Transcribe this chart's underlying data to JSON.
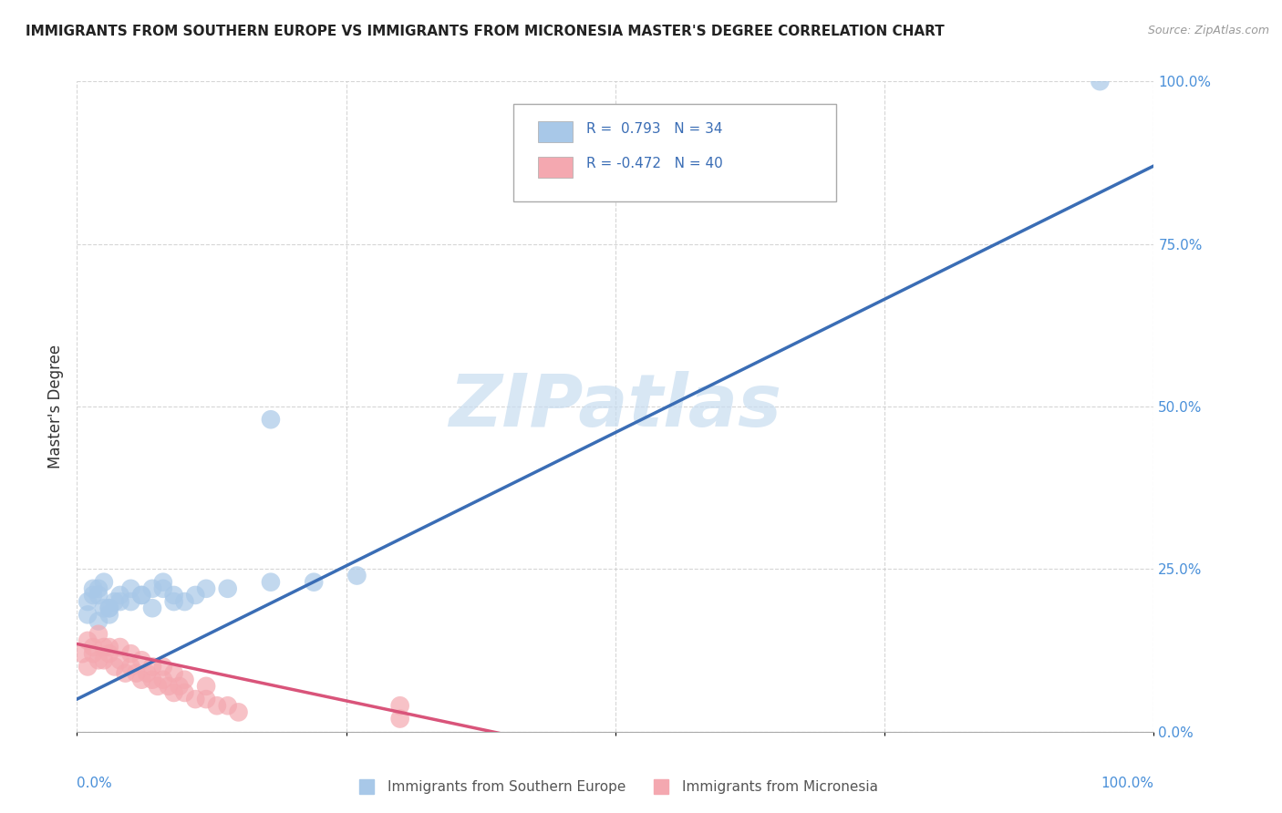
{
  "title": "IMMIGRANTS FROM SOUTHERN EUROPE VS IMMIGRANTS FROM MICRONESIA MASTER'S DEGREE CORRELATION CHART",
  "source": "Source: ZipAtlas.com",
  "ylabel": "Master's Degree",
  "y_ticks": [
    "0.0%",
    "25.0%",
    "50.0%",
    "75.0%",
    "100.0%"
  ],
  "y_tick_vals": [
    0.0,
    0.25,
    0.5,
    0.75,
    1.0
  ],
  "x_ticks": [
    0.0,
    0.25,
    0.5,
    0.75,
    1.0
  ],
  "legend1_r": "0.793",
  "legend1_n": "34",
  "legend2_r": "-0.472",
  "legend2_n": "40",
  "legend_bottom_label1": "Immigrants from Southern Europe",
  "legend_bottom_label2": "Immigrants from Micronesia",
  "blue_color": "#a8c8e8",
  "pink_color": "#f4a8b0",
  "blue_line_color": "#3a6db5",
  "pink_line_color": "#d9547a",
  "watermark": "ZIPatlas",
  "blue_scatter_x": [
    0.01,
    0.02,
    0.03,
    0.015,
    0.025,
    0.01,
    0.035,
    0.04,
    0.02,
    0.03,
    0.05,
    0.04,
    0.03,
    0.025,
    0.02,
    0.015,
    0.06,
    0.05,
    0.08,
    0.07,
    0.09,
    0.1,
    0.12,
    0.08,
    0.06,
    0.07,
    0.09,
    0.11,
    0.14,
    0.18,
    0.22,
    0.26,
    0.95,
    0.18
  ],
  "blue_scatter_y": [
    0.2,
    0.22,
    0.19,
    0.21,
    0.23,
    0.18,
    0.2,
    0.21,
    0.17,
    0.19,
    0.22,
    0.2,
    0.18,
    0.19,
    0.21,
    0.22,
    0.21,
    0.2,
    0.22,
    0.19,
    0.21,
    0.2,
    0.22,
    0.23,
    0.21,
    0.22,
    0.2,
    0.21,
    0.22,
    0.23,
    0.23,
    0.24,
    1.0,
    0.48
  ],
  "pink_scatter_x": [
    0.005,
    0.01,
    0.015,
    0.02,
    0.025,
    0.03,
    0.01,
    0.015,
    0.02,
    0.025,
    0.03,
    0.035,
    0.04,
    0.045,
    0.05,
    0.055,
    0.06,
    0.065,
    0.07,
    0.075,
    0.08,
    0.085,
    0.09,
    0.095,
    0.1,
    0.11,
    0.12,
    0.13,
    0.14,
    0.15,
    0.04,
    0.05,
    0.06,
    0.07,
    0.08,
    0.09,
    0.1,
    0.12,
    0.3,
    0.3
  ],
  "pink_scatter_y": [
    0.12,
    0.14,
    0.13,
    0.15,
    0.11,
    0.13,
    0.1,
    0.12,
    0.11,
    0.13,
    0.12,
    0.1,
    0.11,
    0.09,
    0.1,
    0.09,
    0.08,
    0.09,
    0.08,
    0.07,
    0.08,
    0.07,
    0.06,
    0.07,
    0.06,
    0.05,
    0.05,
    0.04,
    0.04,
    0.03,
    0.13,
    0.12,
    0.11,
    0.1,
    0.1,
    0.09,
    0.08,
    0.07,
    0.02,
    0.04
  ],
  "blue_line_x_start": 0.0,
  "blue_line_x_end": 1.0,
  "blue_line_y_start": 0.05,
  "blue_line_y_end": 0.87,
  "pink_line_x_start": 0.0,
  "pink_line_x_end": 0.4,
  "pink_line_y_start": 0.135,
  "pink_line_y_end": -0.005,
  "background_color": "#ffffff",
  "plot_bg_color": "#ffffff",
  "grid_color": "#cccccc",
  "title_fontsize": 11,
  "tick_color": "#4a90d9",
  "ylabel_color": "#333333",
  "source_color": "#999999",
  "watermark_color": "#c8ddf0",
  "legend_text_color": "#3a6db5"
}
